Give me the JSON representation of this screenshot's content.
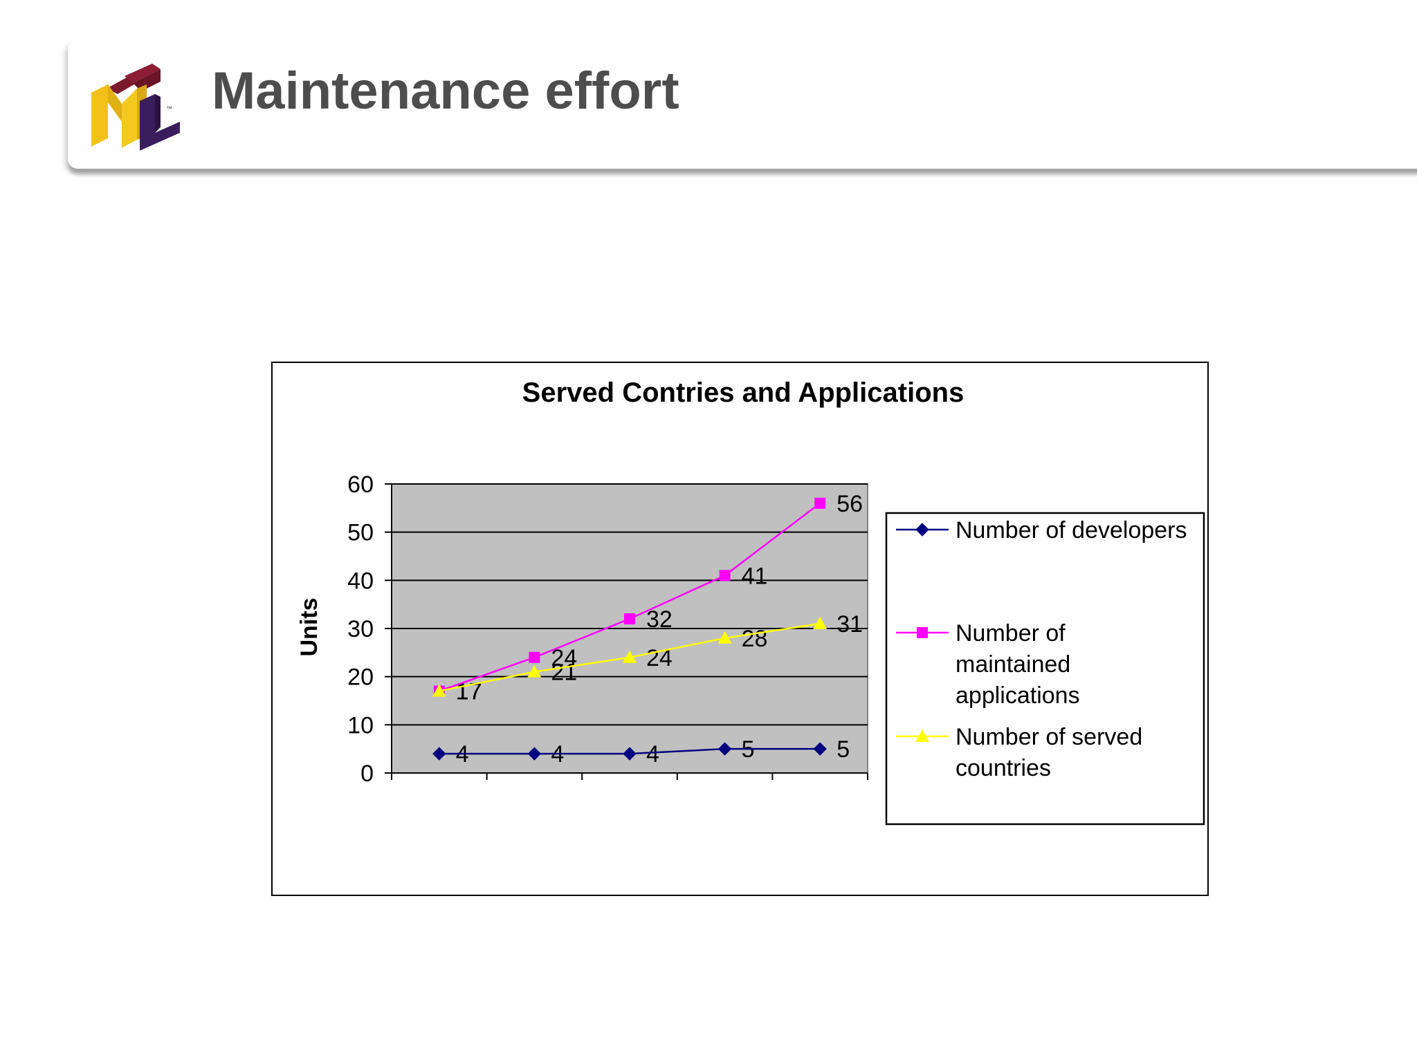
{
  "page": {
    "title": "Maintenance effort"
  },
  "logo": {
    "letters": "IFML",
    "trademark": "™"
  },
  "colors": {
    "plot_background": "#c0c0c0",
    "developers": "#000080",
    "applications": "#ff00ff",
    "countries": "#ffff00",
    "title_text": "#4d4d4d"
  },
  "chart_data": {
    "type": "line",
    "title": "Served Contries and Applications",
    "xlabel": "",
    "ylabel": "Units",
    "ylim": [
      0,
      60
    ],
    "yticks": [
      0,
      10,
      20,
      30,
      40,
      50,
      60
    ],
    "grid": true,
    "legend_placement": "right",
    "x": [
      1,
      2,
      3,
      4,
      5
    ],
    "series": [
      {
        "name": "Number of developers",
        "marker": "diamond",
        "values": [
          4,
          4,
          4,
          5,
          5
        ]
      },
      {
        "name": "Number of maintained applications",
        "marker": "square",
        "values": [
          17,
          24,
          32,
          41,
          56
        ]
      },
      {
        "name": "Number of served countries",
        "marker": "triangle",
        "values": [
          17,
          21,
          24,
          28,
          31
        ]
      }
    ]
  }
}
